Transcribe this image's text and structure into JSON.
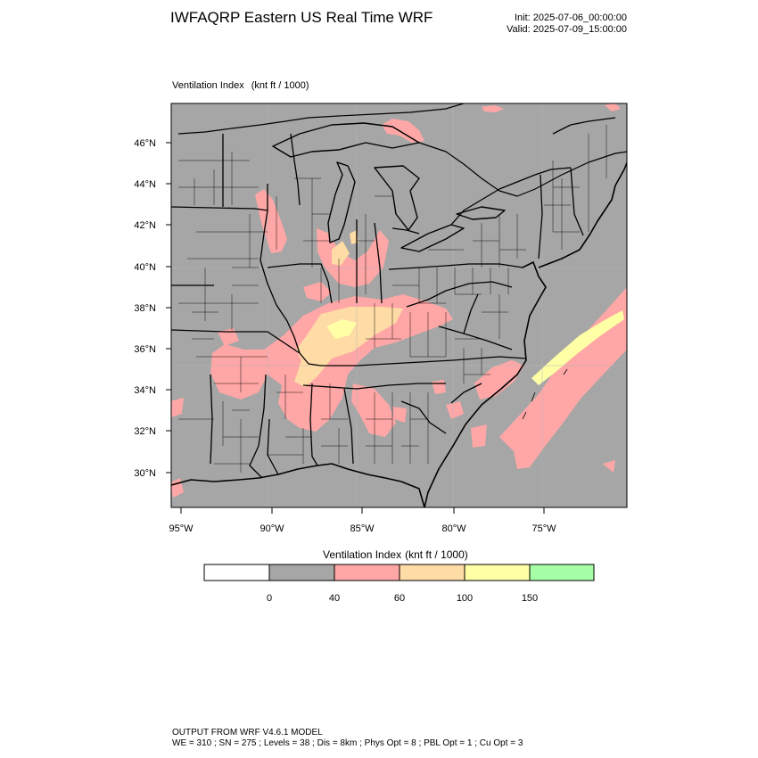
{
  "header": {
    "title": "IWFAQRP Eastern US Real Time WRF",
    "init": "Init: 2025-07-06_00:00:00",
    "valid": "Valid: 2025-07-09_15:00:00"
  },
  "map": {
    "subtitle": "Ventilation Index",
    "subtitle_units": "(knt ft / 1000)",
    "lat_labels": [
      "46°N",
      "44°N",
      "42°N",
      "40°N",
      "38°N",
      "36°N",
      "34°N",
      "32°N",
      "30°N"
    ],
    "lon_labels": [
      "95°W",
      "90°W",
      "85°W",
      "80°W",
      "75°W"
    ]
  },
  "legend": {
    "title": "Ventilation Index",
    "units": "(knt ft / 1000)",
    "labels": [
      "0",
      "40",
      "60",
      "100",
      "150"
    ],
    "colors": [
      "#ffffff",
      "#a6a6a6",
      "#ffa6a6",
      "#ffdba6",
      "#ffffa6",
      "#a6ffa6"
    ]
  },
  "colors": {
    "background_land": "#a6a6a6",
    "high_index": "#ffa6a6",
    "very_high_index": "#ffdba6",
    "peak_index": "#ffffa6"
  },
  "footer": {
    "line1": "OUTPUT FROM WRF V4.6.1 MODEL",
    "line2": "WE = 310 ; SN = 275 ; Levels = 38 ; Dis = 8km ; Phys Opt = 8 ; PBL Opt = 1 ; Cu Opt = 3"
  }
}
